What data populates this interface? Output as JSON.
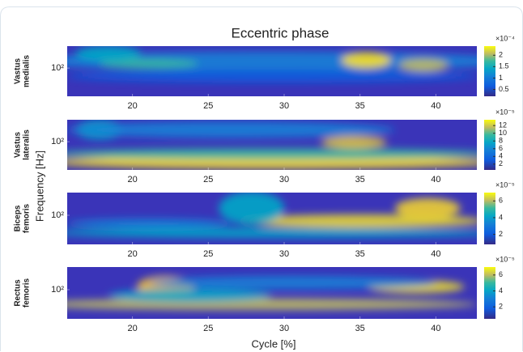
{
  "figure": {
    "title": "Eccentric phase",
    "xlabel": "Cycle [%]",
    "ylabel": "Frequency [Hz]"
  },
  "chart_data": [
    {
      "type": "heatmap",
      "ylabel": [
        "Vastus",
        "medialis"
      ],
      "xlim": [
        15.7,
        42.7
      ],
      "xticks": [
        20,
        25,
        30,
        35,
        40
      ],
      "ylim": [
        10,
        600
      ],
      "yticks": [
        {
          "value": 100,
          "label": "10²"
        }
      ],
      "log_y": true,
      "clim": [
        0.2,
        2.4
      ],
      "cticks": [
        0.5,
        1,
        1.5,
        2
      ],
      "cscale_label": "×10⁻⁴"
    },
    {
      "type": "heatmap",
      "ylabel": [
        "Vastus",
        "lateralis"
      ],
      "xlim": [
        15.7,
        42.7
      ],
      "xticks": [
        20,
        25,
        30,
        35,
        40
      ],
      "ylim": [
        10,
        600
      ],
      "yticks": [
        {
          "value": 100,
          "label": "10²"
        }
      ],
      "log_y": true,
      "clim": [
        0.5,
        13.5
      ],
      "cticks": [
        2,
        4,
        6,
        8,
        10,
        12
      ],
      "cscale_label": "×10⁻⁵"
    },
    {
      "type": "heatmap",
      "ylabel": [
        "Biceps",
        "femoris"
      ],
      "xlim": [
        15.7,
        42.7
      ],
      "xticks": [
        20,
        25,
        30,
        35,
        40
      ],
      "ylim": [
        10,
        600
      ],
      "yticks": [
        {
          "value": 100,
          "label": "10²"
        }
      ],
      "log_y": true,
      "clim": [
        0.8,
        7
      ],
      "cticks": [
        2,
        4,
        6
      ],
      "cscale_label": "×10⁻⁵"
    },
    {
      "type": "heatmap",
      "ylabel": [
        "Rectus",
        "femoris"
      ],
      "xlim": [
        15.7,
        42.7
      ],
      "xticks": [
        20,
        25,
        30,
        35,
        40
      ],
      "ylim": [
        10,
        600
      ],
      "yticks": [
        {
          "value": 100,
          "label": "10²"
        }
      ],
      "log_y": true,
      "clim": [
        0.5,
        7
      ],
      "cticks": [
        2,
        4,
        6
      ],
      "cscale_label": "×10⁻⁵"
    }
  ]
}
